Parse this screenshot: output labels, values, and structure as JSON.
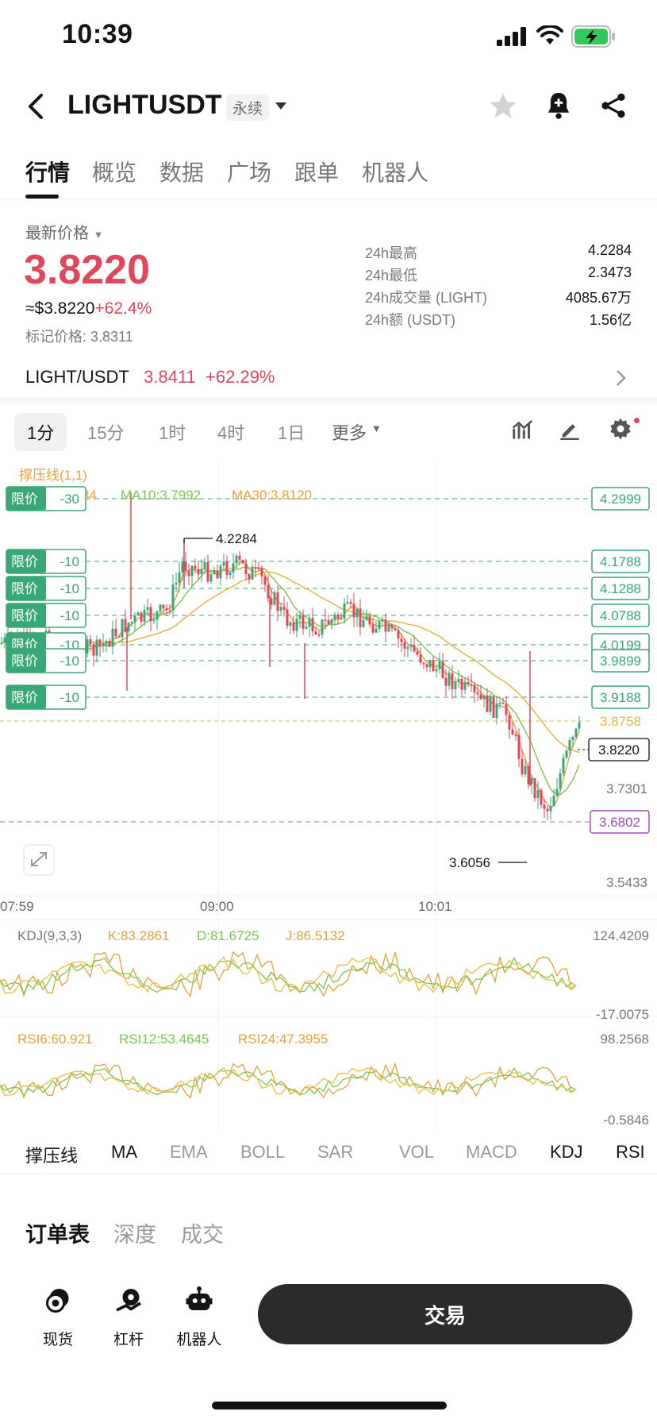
{
  "status": {
    "time": "10:39"
  },
  "header": {
    "title": "LIGHTUSDT",
    "badge": "永续"
  },
  "tabs": [
    "行情",
    "概览",
    "数据",
    "广场",
    "跟单",
    "机器人"
  ],
  "ticker": {
    "latest_label": "最新价格",
    "price": "3.8220",
    "usd_price": "≈$3.8220",
    "change": "+62.4%",
    "mark_price": "标记价格: 3.8311",
    "stats": [
      {
        "label": "24h最高",
        "value": "4.2284"
      },
      {
        "label": "24h最低",
        "value": "2.3473"
      },
      {
        "label": "24h成交量 (LIGHT)",
        "value": "4085.67万"
      },
      {
        "label": "24h额 (USDT)",
        "value": "1.56亿"
      }
    ]
  },
  "pair": {
    "name": "LIGHT/USDT",
    "price": "3.8411",
    "change": "+62.29%"
  },
  "timeframes": [
    "1分",
    "15分",
    "1时",
    "4时",
    "1日",
    "更多"
  ],
  "chart": {
    "pressure_label": "撑压线(1,1)",
    "ma10": "MA10:3.7992",
    "ma30": "MA30:3.8120",
    "ma_partial": "34",
    "high_label": "4.2284",
    "low_label": "3.6056",
    "limit_tag": "限价",
    "limit_orders": [
      {
        "label": "-30",
        "price": "4.2999"
      },
      {
        "label": "-10",
        "price": "4.1788"
      },
      {
        "label": "-10",
        "price": "4.1288"
      },
      {
        "label": "-10",
        "price": "4.0788"
      },
      {
        "label": "-10",
        "price": "4.0199"
      },
      {
        "label": "-10",
        "price": "3.9899"
      },
      {
        "label": "-10",
        "price": "3.9188"
      }
    ],
    "price_ticks": [
      "3.8758",
      "3.8220",
      "3.7301",
      "3.6802",
      "3.5433"
    ],
    "time_ticks": [
      "07:59",
      "09:00",
      "10:01"
    ],
    "kdj": {
      "title": "KDJ(9,3,3)",
      "k": "K:83.2861",
      "d": "D:81.6725",
      "j": "J:86.5132",
      "max": "124.4209",
      "min": "-17.0075"
    },
    "rsi": {
      "r6": "RSI6:60.921",
      "r12": "RSI12:53.4645",
      "r24": "RSI24:47.3955",
      "max": "98.2568",
      "min": "-0.5846"
    },
    "colors": {
      "red": "#e0475c",
      "green": "#3aa876",
      "orange": "#e6a23c",
      "lime": "#78c850",
      "purple": "#a04bc8"
    }
  },
  "indicators": [
    "撑压线",
    "MA",
    "EMA",
    "BOLL",
    "SAR",
    "VOL",
    "MACD",
    "KDJ",
    "RSI"
  ],
  "order_tabs": [
    "订单表",
    "深度",
    "成交"
  ],
  "bottom_nav": [
    "现货",
    "杠杆",
    "机器人"
  ],
  "trade_button": "交易"
}
